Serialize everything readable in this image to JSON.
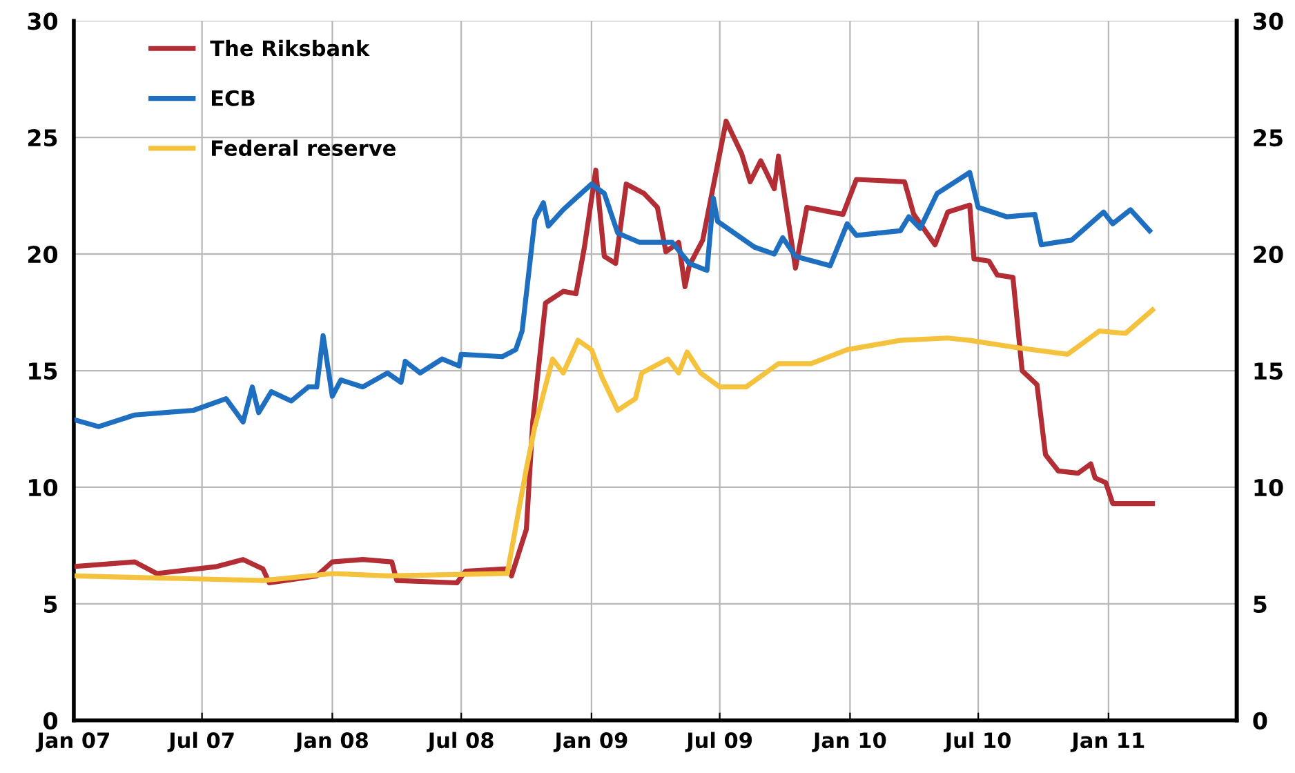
{
  "chart_data": {
    "type": "line",
    "xlim": [
      "2007-01-01",
      "2011-07-01"
    ],
    "xticks": [
      {
        "value": "2007-01-01",
        "label": "Jan 07"
      },
      {
        "value": "2007-07-01",
        "label": "Jul 07"
      },
      {
        "value": "2008-01-01",
        "label": "Jan 08"
      },
      {
        "value": "2008-07-01",
        "label": "Jul 08"
      },
      {
        "value": "2009-01-01",
        "label": "Jan 09"
      },
      {
        "value": "2009-07-01",
        "label": "Jul 09"
      },
      {
        "value": "2010-01-01",
        "label": "Jan 10"
      },
      {
        "value": "2010-07-01",
        "label": "Jul 10"
      },
      {
        "value": "2011-01-01",
        "label": "Jan 11"
      }
    ],
    "ylim": [
      0,
      30
    ],
    "yticks": [
      0,
      5,
      10,
      15,
      20,
      25,
      30
    ],
    "y2lim": [
      0,
      30
    ],
    "y2ticks": [
      0,
      5,
      10,
      15,
      20,
      25,
      30
    ],
    "grid": true,
    "legend": "top left",
    "line_style": "solid",
    "marker": "none",
    "series": [
      {
        "name": "The Riksbank",
        "color": "#b22d34",
        "x": [
          "2007-01-01",
          "2007-03-28",
          "2007-04-28",
          "2007-07-22",
          "2007-08-28",
          "2007-09-25",
          "2007-10-04",
          "2007-12-10",
          "2008-01-01",
          "2008-02-13",
          "2008-03-25",
          "2008-04-01",
          "2008-06-25",
          "2008-07-07",
          "2008-09-04",
          "2008-09-10",
          "2008-10-01",
          "2008-10-10",
          "2008-10-28",
          "2008-11-22",
          "2008-12-10",
          "2008-12-22",
          "2009-01-07",
          "2009-01-19",
          "2009-02-04",
          "2009-02-19",
          "2009-03-16",
          "2009-04-04",
          "2009-04-16",
          "2009-05-04",
          "2009-05-13",
          "2009-05-19",
          "2009-06-07",
          "2009-07-10",
          "2009-08-01",
          "2009-08-13",
          "2009-08-28",
          "2009-09-16",
          "2009-09-22",
          "2009-10-16",
          "2009-11-01",
          "2009-12-22",
          "2010-01-10",
          "2010-03-19",
          "2010-04-01",
          "2010-05-01",
          "2010-05-19",
          "2010-06-19",
          "2010-06-25",
          "2010-07-16",
          "2010-07-28",
          "2010-08-19",
          "2010-09-01",
          "2010-09-22",
          "2010-10-04",
          "2010-10-22",
          "2010-11-19",
          "2010-12-07",
          "2010-12-13",
          "2010-12-28",
          "2011-01-07",
          "2011-03-04"
        ],
        "values": [
          6.6,
          6.8,
          6.3,
          6.6,
          6.9,
          6.5,
          5.9,
          6.2,
          6.8,
          6.9,
          6.8,
          6.0,
          5.9,
          6.4,
          6.5,
          6.2,
          8.2,
          12.8,
          17.9,
          18.4,
          18.3,
          20.3,
          23.6,
          19.9,
          19.6,
          23.0,
          22.6,
          22.0,
          20.1,
          20.5,
          18.6,
          19.5,
          20.6,
          25.7,
          24.3,
          23.1,
          24.0,
          22.8,
          24.2,
          19.4,
          22.0,
          21.7,
          23.2,
          23.1,
          21.7,
          20.4,
          21.8,
          22.1,
          19.8,
          19.7,
          19.1,
          19.0,
          15.0,
          14.4,
          11.4,
          10.7,
          10.6,
          11.0,
          10.4,
          10.2,
          9.3,
          9.3
        ]
      },
      {
        "name": "ECB",
        "color": "#1f6fc0",
        "x": [
          "2007-01-01",
          "2007-02-05",
          "2007-03-28",
          "2007-06-19",
          "2007-08-04",
          "2007-08-28",
          "2007-09-10",
          "2007-09-19",
          "2007-10-07",
          "2007-11-04",
          "2007-11-28",
          "2007-12-10",
          "2007-12-19",
          "2008-01-01",
          "2008-01-13",
          "2008-02-13",
          "2008-03-19",
          "2008-04-07",
          "2008-04-13",
          "2008-05-04",
          "2008-06-04",
          "2008-06-28",
          "2008-07-01",
          "2008-08-28",
          "2008-09-16",
          "2008-09-25",
          "2008-10-13",
          "2008-10-25",
          "2008-11-01",
          "2008-11-22",
          "2008-12-10",
          "2009-01-01",
          "2009-01-19",
          "2009-02-07",
          "2009-03-10",
          "2009-04-25",
          "2009-05-19",
          "2009-06-13",
          "2009-06-22",
          "2009-06-28",
          "2009-08-19",
          "2009-09-16",
          "2009-09-28",
          "2009-10-16",
          "2009-12-04",
          "2009-12-28",
          "2010-01-10",
          "2010-03-13",
          "2010-03-25",
          "2010-04-10",
          "2010-05-04",
          "2010-06-19",
          "2010-07-01",
          "2010-08-10",
          "2010-09-19",
          "2010-09-28",
          "2010-11-10",
          "2010-12-25",
          "2011-01-07",
          "2011-02-01",
          "2011-02-28"
        ],
        "values": [
          12.9,
          12.6,
          13.1,
          13.3,
          13.8,
          12.8,
          14.3,
          13.2,
          14.1,
          13.7,
          14.3,
          14.3,
          16.5,
          13.9,
          14.6,
          14.3,
          14.9,
          14.5,
          15.4,
          14.9,
          15.5,
          15.2,
          15.7,
          15.6,
          15.9,
          16.7,
          21.5,
          22.2,
          21.2,
          21.9,
          22.4,
          23.0,
          22.6,
          20.9,
          20.5,
          20.5,
          19.6,
          19.3,
          22.4,
          21.4,
          20.3,
          20.0,
          20.7,
          19.9,
          19.5,
          21.3,
          20.8,
          21.0,
          21.6,
          21.1,
          22.6,
          23.5,
          22.0,
          21.6,
          21.7,
          20.4,
          20.6,
          21.8,
          21.3,
          21.9,
          21.0
        ]
      },
      {
        "name": "Federal reserve",
        "color": "#f5c23e",
        "x": [
          "2007-01-01",
          "2007-09-25",
          "2008-01-01",
          "2008-03-19",
          "2008-09-04",
          "2008-10-01",
          "2008-10-13",
          "2008-11-07",
          "2008-11-22",
          "2008-12-13",
          "2009-01-01",
          "2009-01-16",
          "2009-02-07",
          "2009-03-04",
          "2009-03-13",
          "2009-04-19",
          "2009-05-04",
          "2009-05-16",
          "2009-06-04",
          "2009-07-01",
          "2009-08-07",
          "2009-09-22",
          "2009-11-07",
          "2009-12-28",
          "2010-03-13",
          "2010-05-19",
          "2010-06-19",
          "2010-08-22",
          "2010-11-04",
          "2010-12-19",
          "2011-01-25",
          "2011-03-04"
        ],
        "values": [
          6.2,
          6.0,
          6.3,
          6.2,
          6.3,
          10.8,
          12.6,
          15.5,
          14.9,
          16.3,
          15.9,
          14.7,
          13.3,
          13.8,
          14.9,
          15.5,
          14.9,
          15.8,
          14.9,
          14.3,
          14.3,
          15.3,
          15.3,
          15.9,
          16.3,
          16.4,
          16.3,
          16.0,
          15.7,
          16.7,
          16.6,
          17.6
        ]
      }
    ]
  }
}
